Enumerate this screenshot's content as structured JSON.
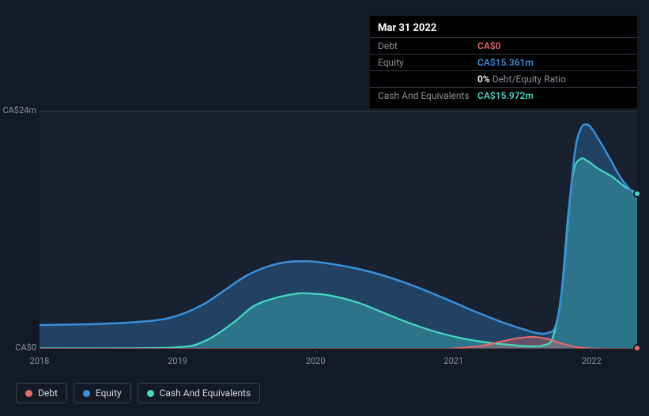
{
  "tooltip": {
    "date": "Mar 31 2022",
    "rows": [
      {
        "label": "Debt",
        "value": "CA$0",
        "color": "#e76c6c"
      },
      {
        "label": "Equity",
        "value": "CA$15.361m",
        "color": "#3a8fd9"
      },
      {
        "label": "",
        "value_prefix": "0%",
        "value_suffix": " Debt/Equity Ratio",
        "prefix_color": "#ffffff",
        "suffix_color": "#8a929c"
      },
      {
        "label": "Cash And Equivalents",
        "value": "CA$15.972m",
        "color": "#45d9c1"
      }
    ]
  },
  "chart": {
    "type": "area",
    "background_color": "#131a25",
    "grid_color": "#2f3742",
    "plot_bg": "#182130",
    "ylim": [
      0,
      24
    ],
    "ylabels": [
      {
        "text": "CA$24m",
        "y": 0
      },
      {
        "text": "CA$0",
        "y": 24
      }
    ],
    "xlim": [
      2018,
      2022.33
    ],
    "xticks": [
      {
        "text": "2018",
        "x": 2018
      },
      {
        "text": "2019",
        "x": 2019
      },
      {
        "text": "2020",
        "x": 2020
      },
      {
        "text": "2021",
        "x": 2021
      },
      {
        "text": "2022",
        "x": 2022
      }
    ],
    "series": [
      {
        "name": "Cash And Equivalents",
        "color": "#45d9c1",
        "fill_opacity": 0.38,
        "line_width": 2.2,
        "points": [
          [
            2018,
            0.05
          ],
          [
            2018.5,
            0.05
          ],
          [
            2019,
            0.15
          ],
          [
            2019.2,
            0.8
          ],
          [
            2019.4,
            2.6
          ],
          [
            2019.55,
            4.3
          ],
          [
            2019.7,
            5.1
          ],
          [
            2019.85,
            5.55
          ],
          [
            2019.95,
            5.6
          ],
          [
            2020.1,
            5.4
          ],
          [
            2020.3,
            4.7
          ],
          [
            2020.5,
            3.6
          ],
          [
            2020.7,
            2.5
          ],
          [
            2020.9,
            1.6
          ],
          [
            2021.1,
            0.95
          ],
          [
            2021.3,
            0.55
          ],
          [
            2021.45,
            0.35
          ],
          [
            2021.55,
            0.25
          ],
          [
            2021.65,
            0.35
          ],
          [
            2021.72,
            1.2
          ],
          [
            2021.78,
            5.5
          ],
          [
            2021.83,
            13.5
          ],
          [
            2021.87,
            18.0
          ],
          [
            2021.92,
            19.2
          ],
          [
            2021.97,
            19.0
          ],
          [
            2022.05,
            18.2
          ],
          [
            2022.15,
            17.4
          ],
          [
            2022.25,
            16.3
          ],
          [
            2022.33,
            15.8
          ]
        ]
      },
      {
        "name": "Equity",
        "color": "#3a8fd9",
        "fill_opacity": 0.3,
        "line_width": 2.5,
        "points": [
          [
            2018,
            2.4
          ],
          [
            2018.4,
            2.5
          ],
          [
            2018.7,
            2.7
          ],
          [
            2018.9,
            3.0
          ],
          [
            2019.05,
            3.6
          ],
          [
            2019.2,
            4.6
          ],
          [
            2019.35,
            6.0
          ],
          [
            2019.5,
            7.4
          ],
          [
            2019.65,
            8.3
          ],
          [
            2019.78,
            8.75
          ],
          [
            2019.9,
            8.85
          ],
          [
            2020.0,
            8.8
          ],
          [
            2020.15,
            8.5
          ],
          [
            2020.35,
            7.95
          ],
          [
            2020.55,
            7.15
          ],
          [
            2020.75,
            6.15
          ],
          [
            2020.95,
            5.0
          ],
          [
            2021.15,
            3.8
          ],
          [
            2021.35,
            2.7
          ],
          [
            2021.5,
            2.0
          ],
          [
            2021.6,
            1.6
          ],
          [
            2021.68,
            1.6
          ],
          [
            2021.74,
            2.4
          ],
          [
            2021.79,
            6.5
          ],
          [
            2021.84,
            14.5
          ],
          [
            2021.88,
            20.0
          ],
          [
            2021.92,
            22.2
          ],
          [
            2021.96,
            22.7
          ],
          [
            2022.0,
            22.3
          ],
          [
            2022.05,
            21.2
          ],
          [
            2022.13,
            19.3
          ],
          [
            2022.22,
            17.1
          ],
          [
            2022.33,
            15.3
          ]
        ]
      },
      {
        "name": "Debt",
        "color": "#e76c6c",
        "fill_opacity": 0.35,
        "line_width": 2,
        "points": [
          [
            2018,
            0
          ],
          [
            2020.8,
            0
          ],
          [
            2021.0,
            0.05
          ],
          [
            2021.2,
            0.3
          ],
          [
            2021.35,
            0.75
          ],
          [
            2021.48,
            1.1
          ],
          [
            2021.58,
            1.2
          ],
          [
            2021.68,
            1.0
          ],
          [
            2021.78,
            0.55
          ],
          [
            2021.88,
            0.2
          ],
          [
            2021.98,
            0.05
          ],
          [
            2022.1,
            0
          ],
          [
            2022.33,
            0
          ]
        ]
      }
    ],
    "markers": [
      {
        "x": 2022.33,
        "y": 0.05,
        "color": "#e76c6c"
      },
      {
        "x": 2022.33,
        "y": 15.7,
        "color": "#45d9c1"
      }
    ]
  },
  "legend": [
    {
      "label": "Debt",
      "color": "#e76c6c"
    },
    {
      "label": "Equity",
      "color": "#3a8fd9"
    },
    {
      "label": "Cash And Equivalents",
      "color": "#45d9c1"
    }
  ]
}
